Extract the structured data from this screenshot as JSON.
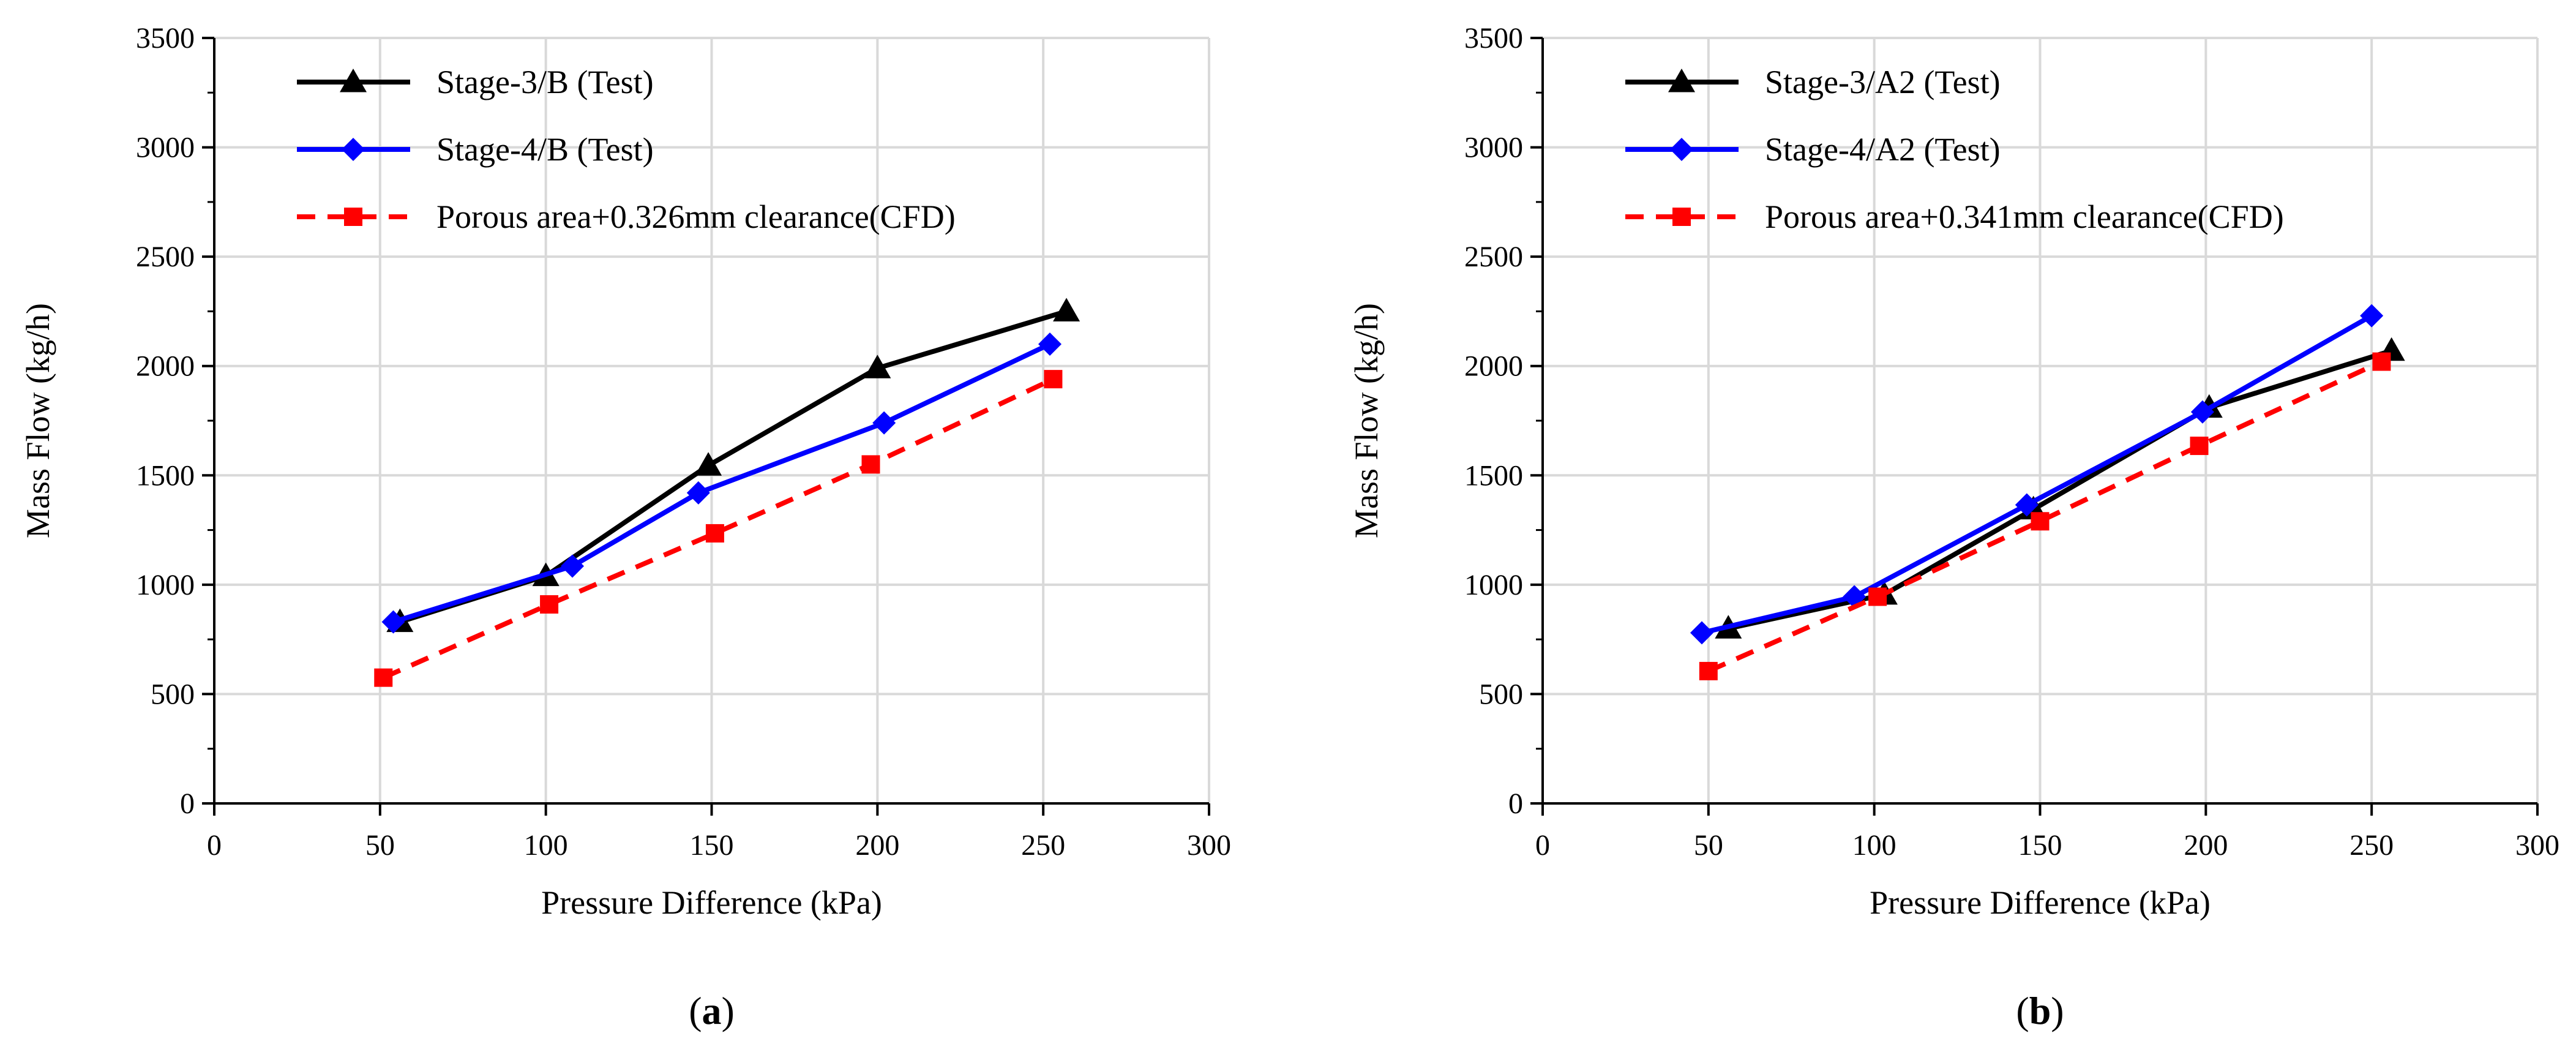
{
  "chart_data": [
    {
      "type": "line",
      "caption": "(a)",
      "caption_letter": "a",
      "xlabel": "Pressure Difference (kPa)",
      "ylabel": "Mass Flow (kg/h)",
      "xlim": [
        0,
        300
      ],
      "ylim": [
        0,
        3500
      ],
      "xticks": [
        0,
        50,
        100,
        150,
        200,
        250,
        300
      ],
      "yticks": [
        0,
        500,
        1000,
        1500,
        2000,
        2500,
        3000,
        3500
      ],
      "grid": true,
      "legend_position": "top-left",
      "series": [
        {
          "name": "Stage-3/B (Test)",
          "color": "#000000",
          "marker": "triangle",
          "dash": "solid",
          "x": [
            56,
            100,
            149,
            200,
            257
          ],
          "y": [
            830,
            1040,
            1545,
            1990,
            2250
          ]
        },
        {
          "name": "Stage-4/B (Test)",
          "color": "#0000ff",
          "marker": "diamond",
          "dash": "solid",
          "x": [
            54,
            108,
            146,
            202,
            252
          ],
          "y": [
            830,
            1085,
            1420,
            1740,
            2100
          ]
        },
        {
          "name": "Porous area+0.326mm clearance(CFD)",
          "color": "#ff0000",
          "marker": "square",
          "dash": "dashed",
          "x": [
            51,
            101,
            151,
            198,
            253
          ],
          "y": [
            575,
            910,
            1235,
            1550,
            1940
          ]
        }
      ]
    },
    {
      "type": "line",
      "caption": "(b)",
      "caption_letter": "b",
      "xlabel": "Pressure Difference (kPa)",
      "ylabel": "Mass Flow (kg/h)",
      "xlim": [
        0,
        300
      ],
      "ylim": [
        0,
        3500
      ],
      "xticks": [
        0,
        50,
        100,
        150,
        200,
        250,
        300
      ],
      "yticks": [
        0,
        500,
        1000,
        1500,
        2000,
        2500,
        3000,
        3500
      ],
      "grid": true,
      "legend_position": "top-left",
      "series": [
        {
          "name": "Stage-3/A2 (Test)",
          "color": "#000000",
          "marker": "triangle",
          "dash": "solid",
          "x": [
            56,
            103,
            148,
            201,
            256
          ],
          "y": [
            800,
            955,
            1345,
            1810,
            2070
          ]
        },
        {
          "name": "Stage-4/A2 (Test)",
          "color": "#0000ff",
          "marker": "diamond",
          "dash": "solid",
          "x": [
            48,
            94,
            146,
            199,
            250
          ],
          "y": [
            780,
            945,
            1365,
            1790,
            2230
          ]
        },
        {
          "name": "Porous area+0.341mm clearance(CFD)",
          "color": "#ff0000",
          "marker": "square",
          "dash": "dashed",
          "x": [
            50,
            101,
            150,
            198,
            253
          ],
          "y": [
            605,
            945,
            1290,
            1635,
            2020
          ]
        }
      ]
    }
  ]
}
